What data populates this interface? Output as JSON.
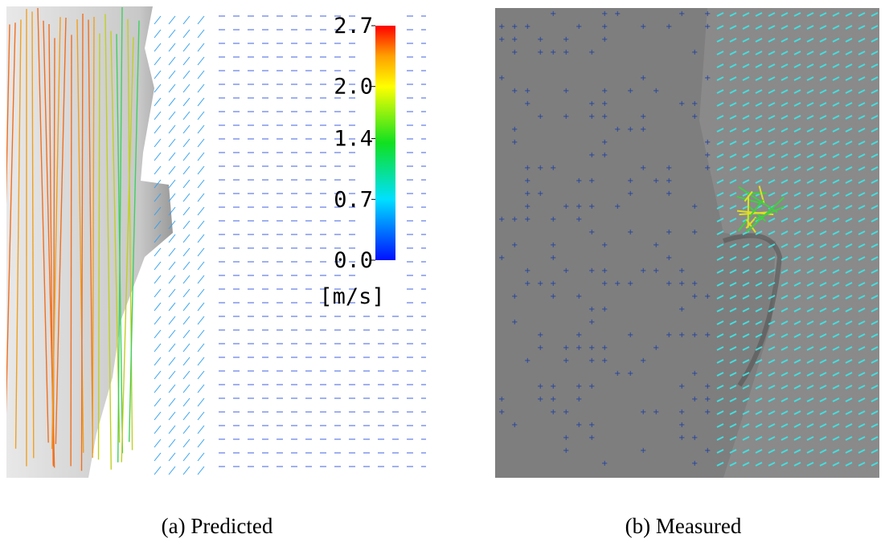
{
  "panels": [
    {
      "caption": "(a) Predicted",
      "colorbar": {
        "lim": [
          0,
          2.7
        ],
        "ticks": [
          {
            "value": 0,
            "label": "0.0"
          },
          0.7,
          1.4,
          {
            "value": 2,
            "label": "2.0"
          },
          2.7
        ],
        "unit": "[m/s]"
      }
    },
    {
      "caption": "(b) Measured"
    }
  ]
}
